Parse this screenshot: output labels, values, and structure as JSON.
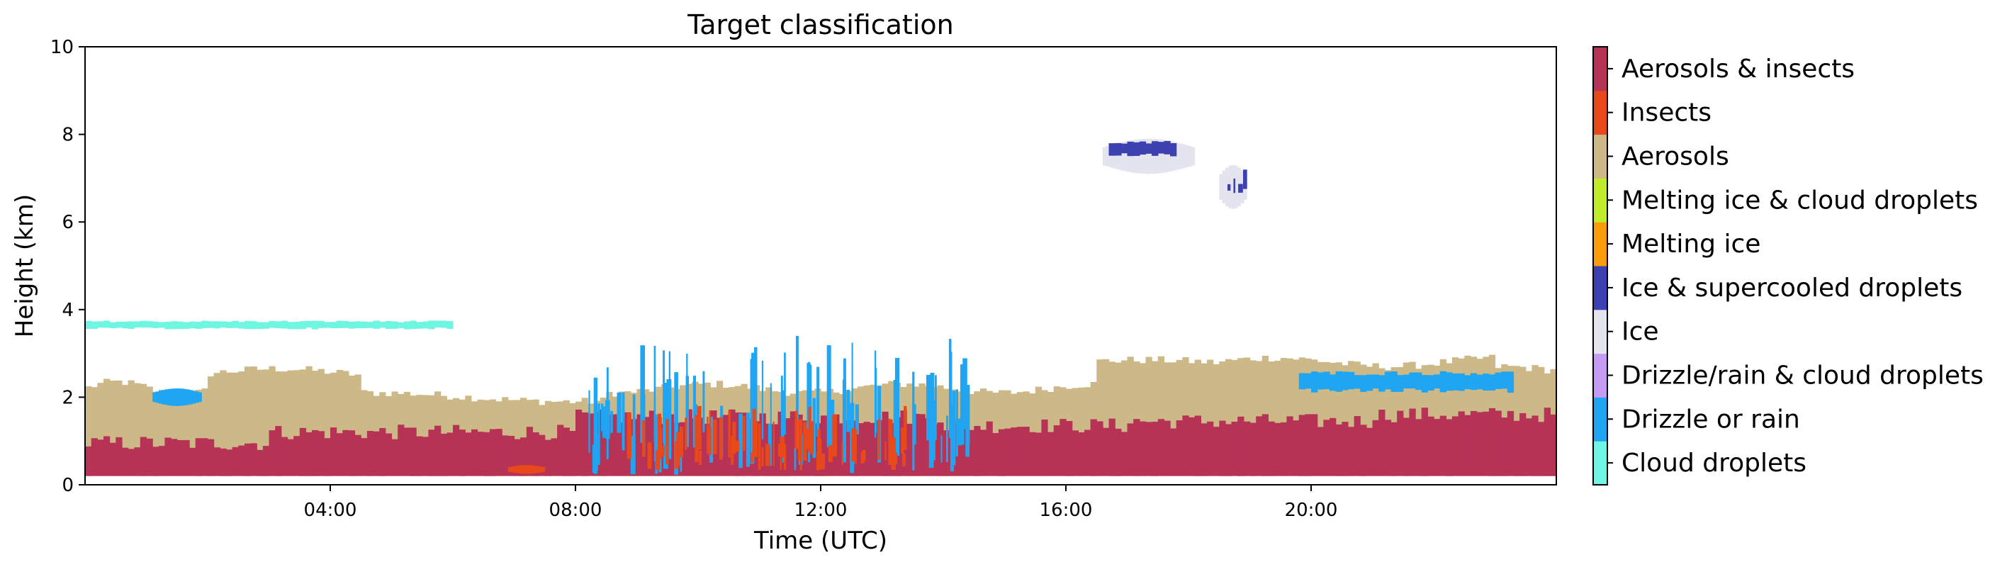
{
  "chart_data": {
    "type": "heatmap",
    "title": "Target classification",
    "xlabel": "Time (UTC)",
    "ylabel": "Height (km)",
    "xlim": [
      0,
      24
    ],
    "ylim": [
      0,
      10
    ],
    "x_ticks": [
      {
        "value": 4,
        "label": "04:00"
      },
      {
        "value": 8,
        "label": "08:00"
      },
      {
        "value": 12,
        "label": "12:00"
      },
      {
        "value": 16,
        "label": "16:00"
      },
      {
        "value": 20,
        "label": "20:00"
      }
    ],
    "y_ticks": [
      {
        "value": 0,
        "label": "0"
      },
      {
        "value": 2,
        "label": "2"
      },
      {
        "value": 4,
        "label": "4"
      },
      {
        "value": 6,
        "label": "6"
      },
      {
        "value": 8,
        "label": "8"
      },
      {
        "value": 10,
        "label": "10"
      }
    ],
    "grid": false,
    "legend_placement": "right colorbar",
    "classes": [
      {
        "name": "Cloud droplets",
        "color": "#6ff6e3"
      },
      {
        "name": "Drizzle or rain",
        "color": "#1fa5f1"
      },
      {
        "name": "Drizzle/rain & cloud droplets",
        "color": "#c49cf2"
      },
      {
        "name": "Ice",
        "color": "#e4e4ee"
      },
      {
        "name": "Ice & supercooled droplets",
        "color": "#3d40b0"
      },
      {
        "name": "Melting ice",
        "color": "#fa9c0b"
      },
      {
        "name": "Melting ice & cloud droplets",
        "color": "#c1ec29"
      },
      {
        "name": "Aerosols",
        "color": "#cdb987"
      },
      {
        "name": "Insects",
        "color": "#e8491b"
      },
      {
        "name": "Aerosols & insects",
        "color": "#b63356"
      }
    ],
    "regions": [
      {
        "class": "Aerosols",
        "x": [
          0.0,
          24.0
        ],
        "y": [
          0.2,
          2.3
        ],
        "pattern": "aerosol_top"
      },
      {
        "class": "Aerosols & insects",
        "x": [
          0.0,
          24.0
        ],
        "y": [
          0.2,
          1.5
        ],
        "pattern": "insect_top"
      },
      {
        "class": "Cloud droplets",
        "x": [
          0.0,
          6.0
        ],
        "y": [
          3.55,
          3.75
        ],
        "pattern": "band"
      },
      {
        "class": "Drizzle or rain",
        "x": [
          1.1,
          1.9
        ],
        "y": [
          1.8,
          2.2
        ],
        "pattern": "patch"
      },
      {
        "class": "Drizzle or rain",
        "x": [
          8.2,
          14.5
        ],
        "y": [
          0.2,
          3.4
        ],
        "pattern": "streaks"
      },
      {
        "class": "Insects",
        "x": [
          8.8,
          13.5
        ],
        "y": [
          0.3,
          1.8
        ],
        "pattern": "streaks"
      },
      {
        "class": "Insects",
        "x": [
          6.9,
          7.5
        ],
        "y": [
          0.25,
          0.45
        ],
        "pattern": "patch"
      },
      {
        "class": "Drizzle or rain",
        "x": [
          19.8,
          23.3
        ],
        "y": [
          2.1,
          2.6
        ],
        "pattern": "band"
      },
      {
        "class": "Ice",
        "x": [
          16.6,
          18.1
        ],
        "y": [
          7.1,
          7.9
        ],
        "pattern": "patch"
      },
      {
        "class": "Ice & supercooled droplets",
        "x": [
          16.7,
          17.8
        ],
        "y": [
          7.5,
          7.85
        ],
        "pattern": "band"
      },
      {
        "class": "Ice",
        "x": [
          18.5,
          18.95
        ],
        "y": [
          6.3,
          7.3
        ],
        "pattern": "patch"
      },
      {
        "class": "Ice & supercooled droplets",
        "x": [
          18.6,
          18.9
        ],
        "y": [
          6.6,
          7.2
        ],
        "pattern": "streaks"
      }
    ]
  }
}
